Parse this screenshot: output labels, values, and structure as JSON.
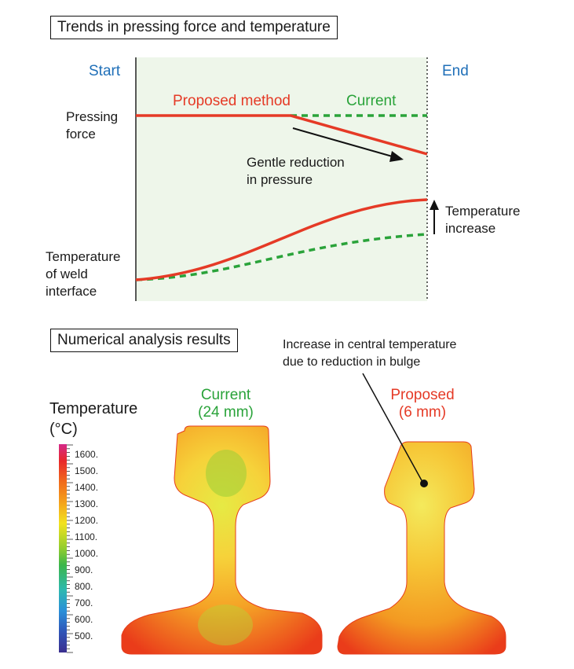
{
  "trends": {
    "title": "Trends in pressing force and temperature",
    "start_label": "Start",
    "end_label": "End",
    "pressing_force_label_line1": "Pressing",
    "pressing_force_label_line2": "force",
    "weld_temp_label_line1": "Temperature",
    "weld_temp_label_line2": "of weld",
    "weld_temp_label_line3": "interface",
    "proposed_legend": "Proposed method",
    "current_legend": "Current",
    "reduction_line1": "Gentle reduction",
    "reduction_line2": "in pressure",
    "temp_increase_line1": "Temperature",
    "temp_increase_line2": "increase",
    "colors": {
      "proposed": "#e53a26",
      "current": "#2aa33a",
      "panel_bg": "#eef6ea",
      "start_end": "#1f6fb8"
    }
  },
  "analysis": {
    "title": "Numerical analysis results",
    "note_line1": "Increase in central temperature",
    "note_line2": "due to reduction in bulge",
    "current_label_line1": "Current",
    "current_label_line2": "(24 mm)",
    "proposed_label_line1": "Proposed",
    "proposed_label_line2": "(6 mm)"
  },
  "legend": {
    "title_line1": "Temperature",
    "title_line2": "(°C)",
    "ticks": [
      "1600.",
      "1500.",
      "1400.",
      "1300.",
      "1200.",
      "1100.",
      "1000.",
      "900.",
      "800.",
      "700.",
      "600.",
      "500."
    ]
  }
}
